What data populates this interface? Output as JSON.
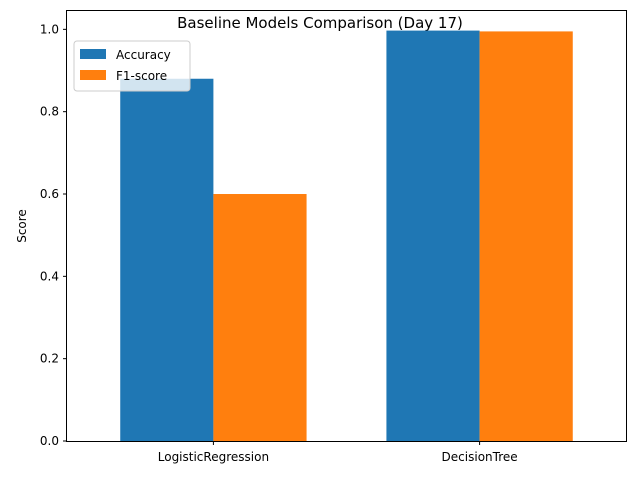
{
  "chart_data": {
    "type": "bar",
    "title": "Baseline Models Comparison (Day 17)",
    "xlabel": "",
    "ylabel": "Score",
    "categories": [
      "LogisticRegression",
      "DecisionTree"
    ],
    "series": [
      {
        "name": "Accuracy",
        "values": [
          0.88,
          0.997
        ],
        "color": "#1f77b4"
      },
      {
        "name": "F1-score",
        "values": [
          0.6,
          0.995
        ],
        "color": "#ff7f0e"
      }
    ],
    "ylim": [
      0,
      1.047
    ],
    "yticks": [
      0.0,
      0.2,
      0.4,
      0.6,
      0.8,
      1.0
    ],
    "ytick_labels": [
      "0.0",
      "0.2",
      "0.4",
      "0.6",
      "0.8",
      "1.0"
    ],
    "grid": false,
    "legend": "top-left"
  }
}
